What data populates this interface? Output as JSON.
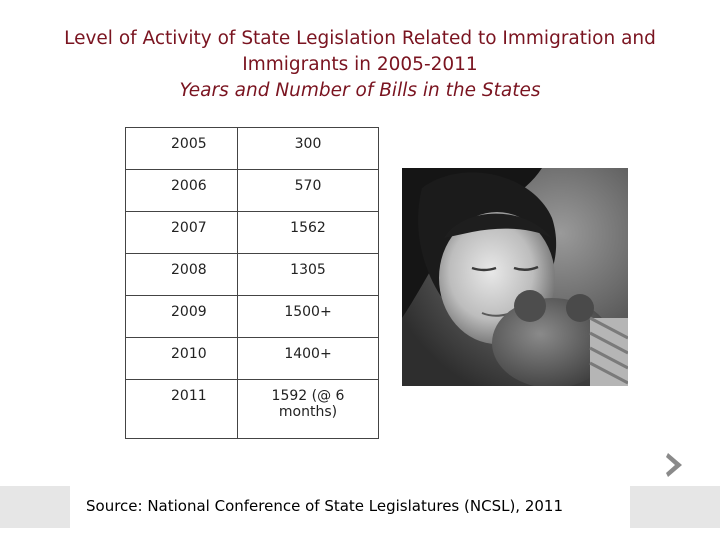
{
  "title": {
    "line1": "Level of Activity of State Legislation Related to Immigration and Immigrants in 2005-2011",
    "line2": "Years and Number of Bills in the States"
  },
  "table": {
    "rows": [
      {
        "year": "2005",
        "bills": "300"
      },
      {
        "year": "2006",
        "bills": "570"
      },
      {
        "year": "2007",
        "bills": "1562"
      },
      {
        "year": "2008",
        "bills": "1305"
      },
      {
        "year": "2009",
        "bills": "1500+"
      },
      {
        "year": "2010",
        "bills": "1400+"
      },
      {
        "year": "2011",
        "bills": "1592 (@ 6 months)"
      }
    ]
  },
  "photo": {
    "icon": "photo-child-with-teddy-bear"
  },
  "nav": {
    "icon": "chevron-right-icon",
    "color": "#8a8a8a"
  },
  "footer": {
    "source": "Source: National Conference of State Legislatures (NCSL), 2011"
  },
  "colors": {
    "title": "#7a1420",
    "footer_bar": "#e6e6e6"
  }
}
